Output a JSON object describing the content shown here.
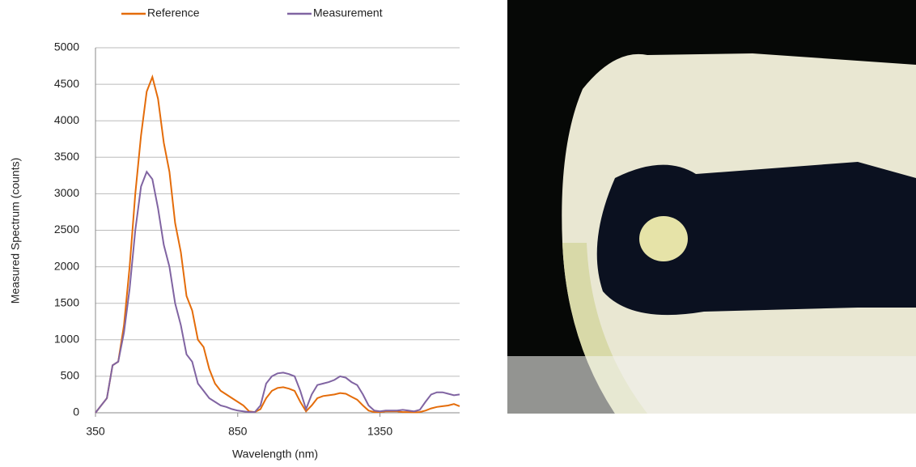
{
  "chart_data": {
    "type": "line",
    "x_label": "Wavelength (nm)",
    "y_label": "Measured Spectrum (counts)",
    "x": [
      350,
      370,
      390,
      410,
      430,
      450,
      470,
      490,
      510,
      530,
      550,
      570,
      590,
      610,
      630,
      650,
      670,
      690,
      710,
      730,
      750,
      770,
      790,
      810,
      830,
      850,
      870,
      890,
      910,
      930,
      950,
      970,
      990,
      1010,
      1030,
      1050,
      1070,
      1090,
      1110,
      1130,
      1150,
      1170,
      1190,
      1210,
      1230,
      1250,
      1270,
      1290,
      1310,
      1330,
      1350,
      1370,
      1390,
      1410,
      1430,
      1450,
      1470,
      1490,
      1510,
      1530,
      1550,
      1570,
      1590,
      1610,
      1630
    ],
    "series": [
      {
        "name": "Reference",
        "color": "#e46c0a",
        "values": [
          0,
          100,
          200,
          650,
          700,
          1200,
          2000,
          3000,
          3800,
          4400,
          4600,
          4300,
          3700,
          3300,
          2600,
          2200,
          1600,
          1400,
          1000,
          900,
          600,
          400,
          300,
          250,
          200,
          150,
          100,
          20,
          10,
          50,
          200,
          300,
          340,
          350,
          330,
          300,
          150,
          20,
          100,
          200,
          230,
          240,
          250,
          270,
          260,
          220,
          180,
          100,
          30,
          10,
          10,
          20,
          20,
          20,
          10,
          10,
          5,
          10,
          30,
          60,
          80,
          90,
          100,
          120,
          90
        ]
      },
      {
        "name": "Measurement",
        "color": "#8064a2",
        "values": [
          0,
          100,
          200,
          650,
          700,
          1100,
          1700,
          2500,
          3100,
          3300,
          3200,
          2800,
          2300,
          2000,
          1500,
          1200,
          800,
          700,
          400,
          300,
          200,
          150,
          100,
          80,
          50,
          30,
          20,
          10,
          10,
          100,
          400,
          500,
          540,
          550,
          530,
          500,
          300,
          50,
          250,
          380,
          400,
          420,
          450,
          500,
          480,
          420,
          380,
          250,
          100,
          30,
          20,
          30,
          30,
          30,
          40,
          30,
          20,
          40,
          150,
          250,
          280,
          280,
          260,
          240,
          250
        ]
      }
    ],
    "xlim": [
      350,
      1630
    ],
    "xticks": [
      350,
      850,
      1350
    ],
    "ylim": [
      0,
      5000
    ],
    "yticks": [
      0,
      500,
      1000,
      1500,
      2000,
      2500,
      3000,
      3500,
      4000,
      4500,
      5000
    ],
    "grid": true,
    "legend": "top"
  }
}
